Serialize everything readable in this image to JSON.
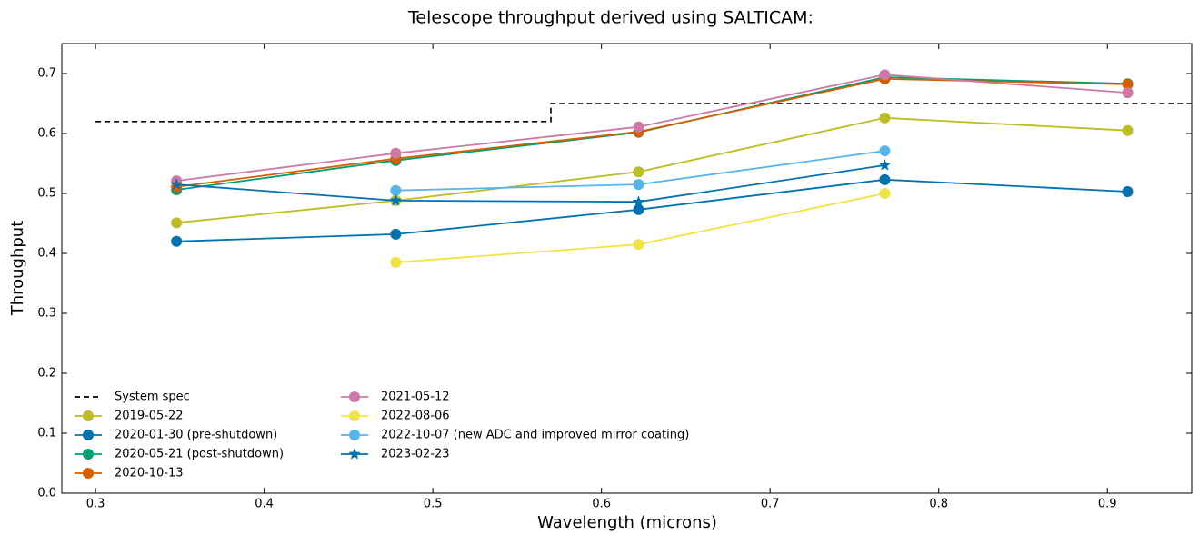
{
  "chart_data": {
    "type": "line",
    "title": "Telescope throughput derived using SALTICAM:",
    "xlabel": "Wavelength (microns)",
    "ylabel": "Throughput",
    "x": [
      0.348,
      0.478,
      0.622,
      0.768,
      0.912
    ],
    "xlim": [
      0.28,
      0.95
    ],
    "ylim": [
      0,
      0.75
    ],
    "xticks": [
      0.3,
      0.4,
      0.5,
      0.6,
      0.7,
      0.8,
      0.9
    ],
    "yticks": [
      {
        "value": 0,
        "label": "0.0"
      },
      0.1,
      0.2,
      0.3,
      0.4,
      0.5,
      0.6,
      0.7
    ],
    "legend": "lower left",
    "series": [
      {
        "name": "System spec",
        "color": "#000000",
        "dashed": true,
        "x": [
          0.3,
          0.57,
          0.57,
          0.95
        ],
        "values": [
          0.62,
          0.62,
          0.65,
          0.65
        ]
      },
      {
        "name": "2019-05-22",
        "color": "#bcbd22",
        "marker": "o",
        "values": [
          0.451,
          0.488,
          0.536,
          0.626,
          0.605
        ]
      },
      {
        "name": "2020-01-30 (pre-shutdown)",
        "color": "#0072b2",
        "marker": "o",
        "values": [
          0.42,
          0.432,
          0.473,
          0.523,
          0.503
        ]
      },
      {
        "name": "2020-05-21 (post-shutdown)",
        "color": "#009e73",
        "marker": "o",
        "values": [
          0.506,
          0.555,
          0.602,
          0.694,
          0.683
        ]
      },
      {
        "name": "2020-10-13",
        "color": "#d55e00",
        "marker": "o",
        "values": [
          0.511,
          0.558,
          0.603,
          0.691,
          0.682
        ]
      },
      {
        "name": "2021-05-12",
        "color": "#cc79a7",
        "marker": "o",
        "values": [
          0.521,
          0.567,
          0.611,
          0.698,
          0.668
        ]
      },
      {
        "name": "2022-08-06",
        "color": "#f0e442",
        "marker": "o",
        "values": [
          null,
          0.385,
          0.415,
          0.5,
          null
        ]
      },
      {
        "name": "2022-10-07 (new ADC and improved mirror coating)",
        "color": "#56b4e9",
        "marker": "o",
        "values": [
          null,
          0.505,
          0.515,
          0.571,
          null
        ]
      },
      {
        "name": "2023-02-23",
        "color": "#0072b2",
        "marker": "*",
        "values": [
          0.515,
          0.488,
          0.486,
          0.547,
          null
        ]
      }
    ]
  }
}
